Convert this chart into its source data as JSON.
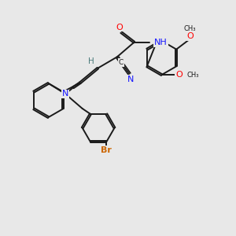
{
  "background_color": "#e8e8e8",
  "bond_color": "#1a1a1a",
  "nitrogen_color": "#1414ff",
  "oxygen_color": "#ff0000",
  "bromine_color": "#cc6600",
  "hydrogen_color": "#4a7a7a",
  "figsize": [
    3.0,
    3.0
  ],
  "dpi": 100,
  "xlim": [
    0,
    10
  ],
  "ylim": [
    0,
    10
  ]
}
